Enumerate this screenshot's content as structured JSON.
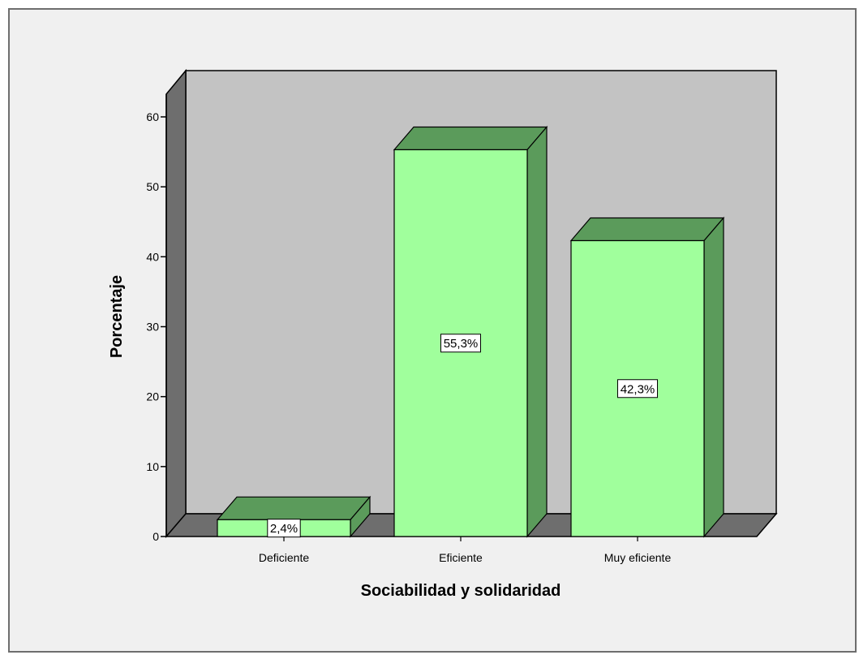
{
  "chart_data": {
    "type": "bar",
    "style": "3d",
    "categories": [
      "Deficiente",
      "Eficiente",
      "Muy eficiente"
    ],
    "values": [
      2.4,
      55.3,
      42.3
    ],
    "data_labels": [
      "2,4%",
      "55,3%",
      "42,3%"
    ],
    "xlabel": "Sociabilidad y solidaridad",
    "ylabel": "Porcentaje",
    "ylim": [
      0,
      60
    ],
    "yticks": [
      "0",
      "10",
      "20",
      "30",
      "40",
      "50",
      "60"
    ],
    "grid": false,
    "legend": "none",
    "colors": {
      "bar_front": "#a0ff9c",
      "bar_side": "#5b9b5b",
      "back_wall": "#c3c3c3",
      "side_wall": "#6e6e6e",
      "floor": "#6e6e6e",
      "background": "#f0f0f0"
    }
  }
}
